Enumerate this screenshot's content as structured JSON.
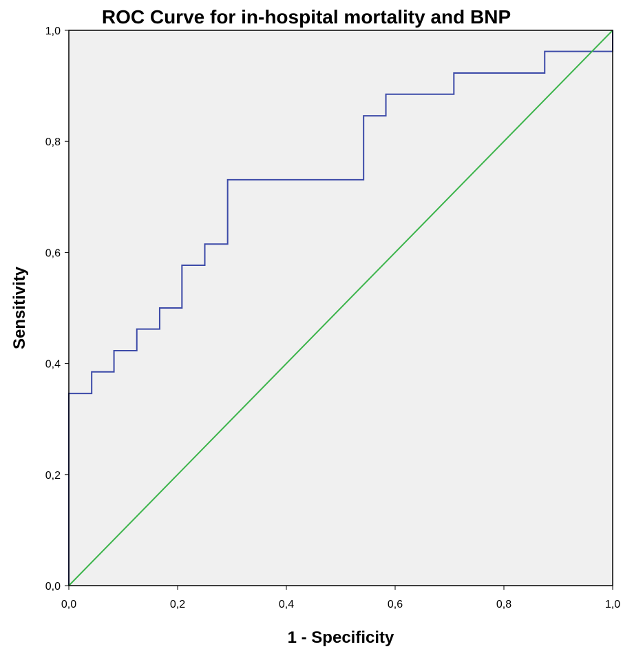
{
  "chart_data": {
    "type": "line",
    "title": "ROC Curve for in-hospital mortality and BNP",
    "xlabel": "1 - Specificity",
    "ylabel": "Sensitivity",
    "xlim": [
      0,
      1
    ],
    "ylim": [
      0,
      1
    ],
    "x_ticks": [
      0,
      0.2,
      0.4,
      0.6,
      0.8,
      1.0
    ],
    "y_ticks": [
      0,
      0.2,
      0.4,
      0.6,
      0.8,
      1.0
    ],
    "x_tick_labels": [
      "0,0",
      "0,2",
      "0,4",
      "0,6",
      "0,8",
      "1,0"
    ],
    "y_tick_labels": [
      "0,0",
      "0,2",
      "0,4",
      "0,6",
      "0,8",
      "1,0"
    ],
    "grid": false,
    "series": [
      {
        "color": "#3c4aa8",
        "points": [
          [
            0.0,
            0.0
          ],
          [
            0.0,
            0.346
          ],
          [
            0.042,
            0.346
          ],
          [
            0.042,
            0.385
          ],
          [
            0.083,
            0.385
          ],
          [
            0.083,
            0.423
          ],
          [
            0.125,
            0.423
          ],
          [
            0.125,
            0.462
          ],
          [
            0.167,
            0.462
          ],
          [
            0.167,
            0.5
          ],
          [
            0.208,
            0.5
          ],
          [
            0.208,
            0.577
          ],
          [
            0.25,
            0.577
          ],
          [
            0.25,
            0.615
          ],
          [
            0.292,
            0.615
          ],
          [
            0.292,
            0.731
          ],
          [
            0.542,
            0.731
          ],
          [
            0.542,
            0.846
          ],
          [
            0.583,
            0.846
          ],
          [
            0.583,
            0.885
          ],
          [
            0.708,
            0.885
          ],
          [
            0.708,
            0.923
          ],
          [
            0.875,
            0.923
          ],
          [
            0.875,
            0.962
          ],
          [
            1.0,
            0.962
          ],
          [
            1.0,
            1.0
          ]
        ]
      },
      {
        "color": "#3cb44b",
        "points": [
          [
            0.0,
            0.0
          ],
          [
            1.0,
            1.0
          ]
        ]
      }
    ],
    "plot_background": "#f0f0f0",
    "frame_color": "#000000"
  }
}
